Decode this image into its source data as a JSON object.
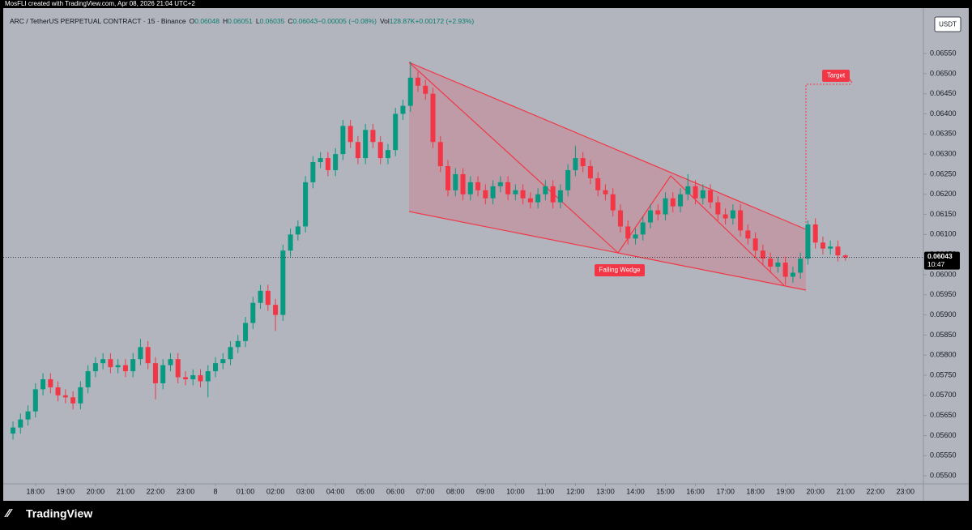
{
  "chart_data": {
    "type": "candlestick",
    "attribution": "MosFLI created with TradingView.com, Apr 08, 2026 21:04 UTC+2",
    "title": "ARC / TetherUS PERPETUAL CONTRACT · 15 · Binance",
    "legend": [
      {
        "key": "O",
        "value": "0.06048"
      },
      {
        "key": "H",
        "value": "0.06051"
      },
      {
        "key": "L",
        "value": "0.06035"
      },
      {
        "key": "C",
        "value": "0.06043"
      },
      {
        "key": "",
        "value": "−0.00005 (−0.08%)"
      },
      {
        "key": "Vol",
        "value": "128.87K"
      },
      {
        "key": "",
        "value": "+0.00172 (+2.93%)"
      }
    ],
    "currency": "USDT",
    "last_price_label": "0.06043",
    "countdown": "10:47",
    "annotations": [
      "Falling Wedge",
      "Target"
    ],
    "brand": "TradingView",
    "up_color": "#089981",
    "down_color": "#f23645",
    "grid": false,
    "open": [
      0.05605,
      0.0562,
      0.0564,
      0.0566,
      0.05715,
      0.0574,
      0.0572,
      0.057,
      0.05695,
      0.0568,
      0.0572,
      0.0576,
      0.0578,
      0.0579,
      0.0577,
      0.05775,
      0.0576,
      0.0579,
      0.0582,
      0.0578,
      0.0573,
      0.05775,
      0.0579,
      0.05745,
      0.0574,
      0.0575,
      0.05735,
      0.0576,
      0.0578,
      0.0579,
      0.0582,
      0.05835,
      0.0588,
      0.0593,
      0.0596,
      0.05925,
      0.059,
      0.0606,
      0.061,
      0.0612,
      0.0623,
      0.0628,
      0.0629,
      0.0626,
      0.063,
      0.0637,
      0.0633,
      0.0629,
      0.0636,
      0.0633,
      0.0629,
      0.0631,
      0.064,
      0.0642,
      0.0649,
      0.0647,
      0.0645,
      0.0633,
      0.0627,
      0.0621,
      0.0625,
      0.062,
      0.0623,
      0.0621,
      0.0619,
      0.0622,
      0.0623,
      0.062,
      0.0621,
      0.0619,
      0.0618,
      0.062,
      0.0622,
      0.0618,
      0.0621,
      0.0626,
      0.0629,
      0.0627,
      0.0624,
      0.0621,
      0.062,
      0.0616,
      0.0612,
      0.0609,
      0.061,
      0.0613,
      0.0616,
      0.0615,
      0.0619,
      0.0617,
      0.062,
      0.0622,
      0.0619,
      0.0621,
      0.0618,
      0.0615,
      0.0614,
      0.0616,
      0.0611,
      0.0609,
      0.0606,
      0.0604,
      0.0602,
      0.0603,
      0.05995,
      0.06005,
      0.0604,
      0.06125,
      0.0608,
      0.06065,
      0.0607,
      0.06048
    ],
    "high": [
      0.05635,
      0.05655,
      0.05675,
      0.0573,
      0.05755,
      0.05755,
      0.05735,
      0.05715,
      0.0571,
      0.05735,
      0.05775,
      0.05795,
      0.05805,
      0.05805,
      0.0579,
      0.0579,
      0.05805,
      0.0584,
      0.05835,
      0.05795,
      0.0579,
      0.05805,
      0.05805,
      0.0576,
      0.05765,
      0.05765,
      0.05775,
      0.05795,
      0.05805,
      0.05835,
      0.0585,
      0.05895,
      0.05945,
      0.05975,
      0.05975,
      0.0594,
      0.06075,
      0.06115,
      0.06135,
      0.06245,
      0.06295,
      0.06305,
      0.06305,
      0.06315,
      0.06385,
      0.06385,
      0.06345,
      0.06375,
      0.06375,
      0.06345,
      0.06325,
      0.06415,
      0.06435,
      0.0653,
      0.06505,
      0.06485,
      0.06465,
      0.06345,
      0.06285,
      0.06265,
      0.06265,
      0.06245,
      0.06245,
      0.06225,
      0.06235,
      0.06245,
      0.06245,
      0.06225,
      0.06225,
      0.06205,
      0.06215,
      0.06235,
      0.06235,
      0.06225,
      0.06275,
      0.0632,
      0.06305,
      0.06285,
      0.06255,
      0.06225,
      0.06215,
      0.06175,
      0.06135,
      0.06115,
      0.06145,
      0.06175,
      0.06175,
      0.06205,
      0.06205,
      0.06215,
      0.0625,
      0.06235,
      0.06225,
      0.06225,
      0.06195,
      0.06165,
      0.06175,
      0.06175,
      0.06125,
      0.06105,
      0.06075,
      0.06055,
      0.06045,
      0.06045,
      0.0602,
      0.06055,
      0.06135,
      0.0614,
      0.06095,
      0.06085,
      0.06085,
      0.06051
    ],
    "low": [
      0.0559,
      0.05605,
      0.05625,
      0.05645,
      0.057,
      0.05705,
      0.05685,
      0.0568,
      0.05665,
      0.05665,
      0.05705,
      0.05745,
      0.05765,
      0.05755,
      0.05755,
      0.05745,
      0.05745,
      0.05775,
      0.05765,
      0.0569,
      0.05715,
      0.0576,
      0.0573,
      0.05725,
      0.05725,
      0.0572,
      0.05695,
      0.05745,
      0.05765,
      0.05775,
      0.05805,
      0.0582,
      0.05865,
      0.05915,
      0.0591,
      0.0586,
      0.05885,
      0.06045,
      0.06085,
      0.06105,
      0.06215,
      0.06265,
      0.06245,
      0.06245,
      0.06285,
      0.06315,
      0.06275,
      0.06275,
      0.06315,
      0.06275,
      0.06275,
      0.06295,
      0.06385,
      0.06405,
      0.06455,
      0.06435,
      0.06315,
      0.06255,
      0.06195,
      0.06195,
      0.06185,
      0.06185,
      0.06195,
      0.06175,
      0.06175,
      0.06205,
      0.06185,
      0.06185,
      0.06175,
      0.06165,
      0.06165,
      0.06185,
      0.06165,
      0.06165,
      0.06195,
      0.06245,
      0.06255,
      0.06225,
      0.06195,
      0.06185,
      0.06145,
      0.06105,
      0.06075,
      0.06075,
      0.06085,
      0.06115,
      0.06135,
      0.06135,
      0.06155,
      0.06155,
      0.06185,
      0.06175,
      0.06175,
      0.06165,
      0.06135,
      0.06125,
      0.06125,
      0.06095,
      0.06075,
      0.06045,
      0.06025,
      0.06005,
      0.06005,
      0.05975,
      0.0598,
      0.0599,
      0.06025,
      0.06065,
      0.0605,
      0.0605,
      0.06033,
      0.06035
    ],
    "close": [
      0.0562,
      0.0564,
      0.0566,
      0.05715,
      0.0574,
      0.0572,
      0.057,
      0.05695,
      0.0568,
      0.0572,
      0.0576,
      0.0578,
      0.0579,
      0.0577,
      0.05775,
      0.0576,
      0.0579,
      0.0582,
      0.0578,
      0.0573,
      0.05775,
      0.0579,
      0.05745,
      0.0574,
      0.0575,
      0.05735,
      0.0576,
      0.0578,
      0.0579,
      0.0582,
      0.05835,
      0.0588,
      0.0593,
      0.0596,
      0.05925,
      0.059,
      0.0606,
      0.061,
      0.0612,
      0.0623,
      0.0628,
      0.0629,
      0.0626,
      0.063,
      0.0637,
      0.0633,
      0.0629,
      0.0636,
      0.0633,
      0.0629,
      0.0631,
      0.064,
      0.0642,
      0.0649,
      0.0647,
      0.0645,
      0.0633,
      0.0627,
      0.0621,
      0.0625,
      0.062,
      0.0623,
      0.0621,
      0.0619,
      0.0622,
      0.0623,
      0.062,
      0.0621,
      0.0619,
      0.0618,
      0.062,
      0.0622,
      0.0618,
      0.0621,
      0.0626,
      0.0629,
      0.0627,
      0.0624,
      0.0621,
      0.062,
      0.0616,
      0.0612,
      0.0609,
      0.061,
      0.0613,
      0.0616,
      0.0615,
      0.0619,
      0.0617,
      0.062,
      0.0622,
      0.0619,
      0.0621,
      0.0618,
      0.0615,
      0.0614,
      0.0616,
      0.0611,
      0.0609,
      0.0606,
      0.0604,
      0.0602,
      0.0603,
      0.05995,
      0.06005,
      0.0604,
      0.06125,
      0.0608,
      0.06065,
      0.0607,
      0.06048,
      0.06043
    ],
    "xlim": [
      -1.3,
      121.4
    ],
    "xticks": [
      {
        "value": 3,
        "label": "18:00"
      },
      {
        "value": 7,
        "label": "19:00"
      },
      {
        "value": 11,
        "label": "20:00"
      },
      {
        "value": 15,
        "label": "21:00"
      },
      {
        "value": 19,
        "label": "22:00"
      },
      {
        "value": 23,
        "label": "23:00"
      },
      {
        "value": 27,
        "label": "8"
      },
      {
        "value": 31,
        "label": "01:00"
      },
      {
        "value": 35,
        "label": "02:00"
      },
      {
        "value": 39,
        "label": "03:00"
      },
      {
        "value": 43,
        "label": "04:00"
      },
      {
        "value": 47,
        "label": "05:00"
      },
      {
        "value": 51,
        "label": "06:00"
      },
      {
        "value": 55,
        "label": "07:00"
      },
      {
        "value": 59,
        "label": "08:00"
      },
      {
        "value": 63,
        "label": "09:00"
      },
      {
        "value": 67,
        "label": "10:00"
      },
      {
        "value": 71,
        "label": "11:00"
      },
      {
        "value": 75,
        "label": "12:00"
      },
      {
        "value": 79,
        "label": "13:00"
      },
      {
        "value": 83,
        "label": "14:00"
      },
      {
        "value": 87,
        "label": "15:00"
      },
      {
        "value": 91,
        "label": "16:00"
      },
      {
        "value": 95,
        "label": "17:00"
      },
      {
        "value": 99,
        "label": "18:00"
      },
      {
        "value": 103,
        "label": "19:00"
      },
      {
        "value": 107,
        "label": "20:00"
      },
      {
        "value": 111,
        "label": "21:00"
      },
      {
        "value": 115,
        "label": "22:00"
      },
      {
        "value": 119,
        "label": "23:00"
      }
    ],
    "ylim": [
      0.0548,
      0.06663
    ],
    "yticks": [
      {
        "value": 0.055,
        "label": "0.05500"
      },
      {
        "value": 0.0555,
        "label": "0.05550"
      },
      {
        "value": 0.056,
        "label": "0.05600"
      },
      {
        "value": 0.0565,
        "label": "0.05650"
      },
      {
        "value": 0.057,
        "label": "0.05700"
      },
      {
        "value": 0.0575,
        "label": "0.05750"
      },
      {
        "value": 0.058,
        "label": "0.05800"
      },
      {
        "value": 0.0585,
        "label": "0.05850"
      },
      {
        "value": 0.059,
        "label": "0.05900"
      },
      {
        "value": 0.0595,
        "label": "0.05950"
      },
      {
        "value": 0.06,
        "label": "0.06000"
      },
      {
        "value": 0.0605,
        "label": "0.06050"
      },
      {
        "value": 0.061,
        "label": "0.06100"
      },
      {
        "value": 0.0615,
        "label": "0.06150"
      },
      {
        "value": 0.062,
        "label": "0.06200"
      },
      {
        "value": 0.0625,
        "label": "0.06250"
      },
      {
        "value": 0.063,
        "label": "0.06300"
      },
      {
        "value": 0.0635,
        "label": "0.06350"
      },
      {
        "value": 0.064,
        "label": "0.06400"
      },
      {
        "value": 0.0645,
        "label": "0.06450"
      },
      {
        "value": 0.065,
        "label": "0.06500"
      },
      {
        "value": 0.0655,
        "label": "0.06550"
      }
    ]
  }
}
